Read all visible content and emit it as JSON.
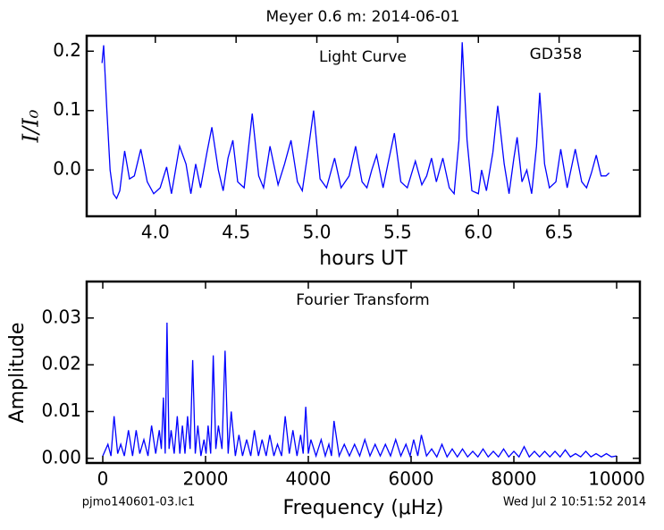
{
  "chart_data": [
    {
      "type": "line",
      "title": "Meyer 0.6 m:  2014-06-01",
      "annotations": [
        "Light Curve",
        "GD358"
      ],
      "x_label": "hours UT",
      "y_label": "I/I₀",
      "xlim": [
        3.575,
        7.0
      ],
      "ylim": [
        -0.078,
        0.226
      ],
      "xticks": [
        {
          "value": 4.0,
          "label": "4.0"
        },
        4.5,
        {
          "value": 5.0,
          "label": "5.0"
        },
        5.5,
        {
          "value": 6.0,
          "label": "6.0"
        },
        6.5
      ],
      "yticks": [
        {
          "value": 0.0,
          "label": "0.0"
        },
        0.1,
        0.2
      ],
      "series": [
        {
          "color": "#0000ff",
          "x": [
            3.67,
            3.68,
            3.7,
            3.72,
            3.74,
            3.76,
            3.78,
            3.81,
            3.84,
            3.87,
            3.91,
            3.95,
            3.99,
            4.03,
            4.07,
            4.1,
            4.15,
            4.19,
            4.22,
            4.25,
            4.28,
            4.32,
            4.35,
            4.39,
            4.42,
            4.45,
            4.48,
            4.51,
            4.55,
            4.6,
            4.64,
            4.67,
            4.71,
            4.76,
            4.8,
            4.84,
            4.88,
            4.91,
            4.95,
            4.98,
            5.02,
            5.06,
            5.11,
            5.15,
            5.2,
            5.24,
            5.28,
            5.31,
            5.34,
            5.37,
            5.41,
            5.44,
            5.48,
            5.52,
            5.56,
            5.61,
            5.65,
            5.68,
            5.71,
            5.74,
            5.78,
            5.82,
            5.85,
            5.88,
            5.9,
            5.93,
            5.96,
            6.0,
            6.02,
            6.05,
            6.09,
            6.12,
            6.16,
            6.19,
            6.22,
            6.24,
            6.27,
            6.3,
            6.33,
            6.36,
            6.38,
            6.41,
            6.44,
            6.48,
            6.51,
            6.55,
            6.6,
            6.64,
            6.67,
            6.7,
            6.73,
            6.76,
            6.79,
            6.81
          ],
          "values": [
            0.18,
            0.21,
            0.1,
            0.0,
            -0.04,
            -0.048,
            -0.035,
            0.032,
            -0.015,
            -0.01,
            0.035,
            -0.02,
            -0.04,
            -0.03,
            0.005,
            -0.04,
            0.04,
            0.01,
            -0.04,
            0.01,
            -0.03,
            0.03,
            0.072,
            0.0,
            -0.035,
            0.02,
            0.05,
            -0.02,
            -0.03,
            0.095,
            -0.01,
            -0.03,
            0.04,
            -0.025,
            0.01,
            0.05,
            -0.02,
            -0.035,
            0.04,
            0.1,
            -0.015,
            -0.03,
            0.02,
            -0.03,
            -0.01,
            0.04,
            -0.02,
            -0.03,
            0.0,
            0.025,
            -0.03,
            0.01,
            0.062,
            -0.02,
            -0.03,
            0.015,
            -0.025,
            -0.01,
            0.02,
            -0.02,
            0.02,
            -0.03,
            -0.04,
            0.05,
            0.215,
            0.05,
            -0.035,
            -0.04,
            0.0,
            -0.035,
            0.03,
            0.108,
            0.01,
            -0.04,
            0.02,
            0.055,
            -0.02,
            0.0,
            -0.04,
            0.04,
            0.13,
            0.01,
            -0.03,
            -0.02,
            0.035,
            -0.03,
            0.035,
            -0.02,
            -0.03,
            -0.005,
            0.025,
            -0.01,
            -0.01,
            -0.005
          ]
        }
      ]
    },
    {
      "type": "line",
      "annotations": [
        "Fourier Transform"
      ],
      "x_label": "Frequency (μHz)",
      "y_label": "Amplitude",
      "xlim": [
        -313,
        10452
      ],
      "ylim": [
        -0.001,
        0.0378
      ],
      "xticks": [
        0,
        2000,
        4000,
        6000,
        8000,
        10000
      ],
      "yticks": [
        {
          "value": 0.0,
          "label": "0.00"
        },
        0.01,
        0.02,
        0.03
      ],
      "series": [
        {
          "color": "#0000ff",
          "x": [
            0,
            100,
            160,
            220,
            290,
            350,
            420,
            500,
            580,
            650,
            720,
            800,
            880,
            950,
            1030,
            1100,
            1140,
            1180,
            1215,
            1250,
            1290,
            1330,
            1390,
            1450,
            1500,
            1550,
            1600,
            1650,
            1700,
            1750,
            1800,
            1850,
            1910,
            1970,
            2010,
            2050,
            2100,
            2150,
            2200,
            2250,
            2320,
            2380,
            2440,
            2500,
            2580,
            2650,
            2720,
            2800,
            2880,
            2950,
            3030,
            3100,
            3180,
            3250,
            3330,
            3400,
            3480,
            3550,
            3630,
            3700,
            3780,
            3850,
            3900,
            3950,
            4000,
            4050,
            4150,
            4250,
            4330,
            4400,
            4450,
            4500,
            4600,
            4700,
            4800,
            4900,
            5000,
            5100,
            5200,
            5300,
            5400,
            5500,
            5600,
            5700,
            5800,
            5900,
            5980,
            6050,
            6130,
            6200,
            6300,
            6400,
            6500,
            6600,
            6700,
            6800,
            6900,
            7000,
            7100,
            7200,
            7300,
            7400,
            7500,
            7600,
            7700,
            7800,
            7900,
            8000,
            8100,
            8200,
            8300,
            8400,
            8500,
            8600,
            8700,
            8800,
            8900,
            9000,
            9100,
            9200,
            9300,
            9400,
            9500,
            9600,
            9700,
            9800,
            9900,
            10000
          ],
          "values": [
            0.0005,
            0.003,
            0.0005,
            0.009,
            0.001,
            0.003,
            0.0005,
            0.006,
            0.0005,
            0.006,
            0.001,
            0.004,
            0.0005,
            0.007,
            0.001,
            0.006,
            0.002,
            0.013,
            0.001,
            0.029,
            0.002,
            0.006,
            0.001,
            0.009,
            0.001,
            0.007,
            0.001,
            0.009,
            0.002,
            0.021,
            0.001,
            0.007,
            0.0005,
            0.004,
            0.001,
            0.007,
            0.001,
            0.022,
            0.002,
            0.007,
            0.002,
            0.023,
            0.001,
            0.01,
            0.0005,
            0.005,
            0.0005,
            0.004,
            0.0005,
            0.006,
            0.0005,
            0.004,
            0.0005,
            0.005,
            0.0005,
            0.003,
            0.0005,
            0.009,
            0.001,
            0.006,
            0.0005,
            0.005,
            0.001,
            0.011,
            0.001,
            0.004,
            0.0005,
            0.004,
            0.0005,
            0.003,
            0.0005,
            0.008,
            0.0005,
            0.003,
            0.0005,
            0.003,
            0.0005,
            0.004,
            0.0005,
            0.003,
            0.0005,
            0.003,
            0.0005,
            0.004,
            0.0005,
            0.003,
            0.0005,
            0.004,
            0.0005,
            0.005,
            0.0005,
            0.002,
            0.0003,
            0.003,
            0.0003,
            0.002,
            0.0003,
            0.002,
            0.0003,
            0.0015,
            0.0003,
            0.002,
            0.0003,
            0.0015,
            0.0003,
            0.002,
            0.0003,
            0.0015,
            0.0003,
            0.0025,
            0.0003,
            0.0015,
            0.0003,
            0.0015,
            0.0003,
            0.0015,
            0.0003,
            0.0018,
            0.0003,
            0.001,
            0.0003,
            0.0015,
            0.0003,
            0.001,
            0.0003,
            0.001,
            0.0003,
            0.0005
          ]
        }
      ]
    }
  ],
  "footer": {
    "left": "pjmo140601-03.lc1",
    "right": "Wed Jul  2 10:51:52 2014"
  }
}
